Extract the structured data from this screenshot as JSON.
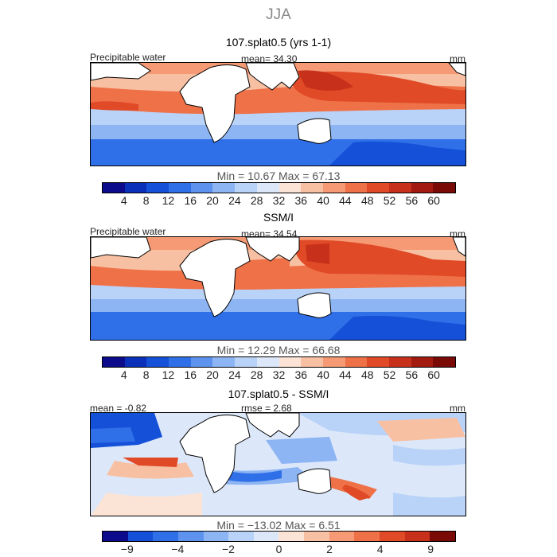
{
  "season": "JJA",
  "panels": [
    {
      "title": "107.splat0.5 (yrs 1-1)",
      "left_label": "Precipitable water",
      "center_label": "mean=  34.30",
      "units": "mm",
      "min_max": "Min =  10.67  Max =  67.13",
      "colorbar_ticks": [
        "4",
        "8",
        "12",
        "16",
        "20",
        "24",
        "28",
        "32",
        "36",
        "40",
        "44",
        "48",
        "52",
        "56",
        "60"
      ]
    },
    {
      "title": "SSM/I",
      "left_label": "Precipitable water",
      "center_label": "mean=  34.54",
      "units": "mm",
      "min_max": "Min =  12.29  Max =  66.68",
      "colorbar_ticks": [
        "4",
        "8",
        "12",
        "16",
        "20",
        "24",
        "28",
        "32",
        "36",
        "40",
        "44",
        "48",
        "52",
        "56",
        "60"
      ]
    },
    {
      "title": "107.splat0.5 - SSM/I",
      "left_label": "mean =  -0.82",
      "center_label": "rmse =   2.68",
      "units": "mm",
      "min_max": "Min = −13.02  Max =   6.51",
      "colorbar_ticks": [
        "−9",
        "−4",
        "−2",
        "0",
        "2",
        "4",
        "9"
      ]
    }
  ],
  "colors": {
    "scale": [
      "#0b0b8c",
      "#0a2fb8",
      "#1550d8",
      "#2f6fe8",
      "#5d93ef",
      "#8db4f3",
      "#b9d2f7",
      "#dce8fa",
      "#fbe3d6",
      "#f8c0a3",
      "#f59a74",
      "#ef7148",
      "#e04a26",
      "#c7301a",
      "#a31a10",
      "#7a0a06"
    ],
    "diff_scale": [
      "#0b0b8c",
      "#1550d8",
      "#2f6fe8",
      "#5d93ef",
      "#8db4f3",
      "#b9d2f7",
      "#dce8fa",
      "#fbe3d6",
      "#f8c0a3",
      "#f59a74",
      "#ef7148",
      "#e04a26",
      "#c7301a",
      "#7a0a06"
    ]
  }
}
